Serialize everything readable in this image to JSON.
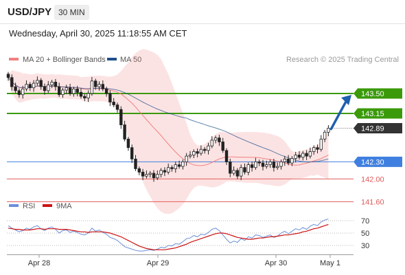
{
  "header": {
    "pair": "USD/JPY",
    "timeframe": "30 MIN",
    "timestamp": "Wednesday, April 30, 2025 11:18:55 AM CET",
    "source": "Research © 2025 Trading Central"
  },
  "colors": {
    "bollinger": "#f08080",
    "ma50": "#1f4e8c",
    "resistance": "#3a9a0a",
    "pivot": "#3f7fdf",
    "support": "#e05a5a",
    "price_label": "#333333",
    "arrow": "#1e5fb0",
    "rsi": "#6a8fd8",
    "rsi_ma": "#cc1111"
  },
  "chart_data": [
    {
      "type": "candlestick",
      "legend": [
        "MA 20 + Bollinger Bands",
        "MA 50"
      ],
      "x_ticks": [
        "Apr 28",
        "Apr 29",
        "Apr 30",
        "May 1"
      ],
      "levels": [
        {
          "value": 143.5,
          "label": "143.50",
          "kind": "resistance"
        },
        {
          "value": 143.15,
          "label": "143.15",
          "kind": "resistance"
        },
        {
          "value": 142.89,
          "label": "142.89",
          "kind": "last_price"
        },
        {
          "value": 142.3,
          "label": "142.30",
          "kind": "pivot"
        },
        {
          "value": 142.0,
          "label": "142.00",
          "kind": "support"
        },
        {
          "value": 141.6,
          "label": "141.60",
          "kind": "support"
        }
      ],
      "forecast_target": 143.5,
      "close": [
        143.78,
        143.62,
        143.55,
        143.48,
        143.58,
        143.66,
        143.6,
        143.68,
        143.73,
        143.62,
        143.55,
        143.65,
        143.7,
        143.62,
        143.48,
        143.56,
        143.6,
        143.5,
        143.58,
        143.52,
        143.45,
        143.42,
        143.5,
        143.72,
        143.62,
        143.66,
        143.58,
        143.5,
        143.35,
        143.3,
        143.22,
        142.95,
        142.7,
        142.55,
        142.35,
        142.18,
        142.12,
        142.05,
        142.08,
        142.1,
        142.02,
        142.08,
        142.15,
        142.12,
        142.2,
        142.18,
        142.25,
        142.22,
        142.3,
        142.4,
        142.42,
        142.48,
        142.45,
        142.52,
        142.5,
        142.58,
        142.68,
        142.72,
        142.65,
        142.5,
        142.3,
        142.1,
        142.15,
        142.05,
        142.2,
        142.12,
        142.25,
        142.2,
        142.3,
        142.28,
        142.22,
        142.25,
        142.3,
        142.2,
        142.22,
        142.3,
        142.35,
        142.28,
        142.36,
        142.42,
        142.38,
        142.45,
        142.4,
        142.48,
        142.55,
        142.52,
        142.7,
        142.82,
        142.89
      ]
    },
    {
      "type": "line",
      "legend": [
        "RSI",
        "9MA"
      ],
      "y_ticks": [
        70,
        50,
        30
      ],
      "ylim": [
        20,
        80
      ],
      "rsi": [
        62,
        58,
        55,
        52,
        54,
        58,
        56,
        60,
        62,
        57,
        54,
        58,
        60,
        56,
        50,
        54,
        55,
        51,
        53,
        51,
        48,
        47,
        50,
        58,
        53,
        55,
        51,
        48,
        43,
        41,
        38,
        33,
        28,
        26,
        24,
        22,
        21,
        21,
        22,
        23,
        22,
        24,
        27,
        26,
        30,
        29,
        33,
        32,
        36,
        41,
        42,
        46,
        44,
        48,
        47,
        51,
        56,
        58,
        54,
        47,
        40,
        34,
        37,
        35,
        41,
        38,
        44,
        42,
        47,
        46,
        43,
        45,
        47,
        43,
        45,
        50,
        53,
        49,
        53,
        57,
        55,
        59,
        56,
        61,
        64,
        62,
        68,
        71,
        73
      ],
      "ma9": [
        58,
        57,
        56,
        56,
        55,
        55,
        55,
        56,
        57,
        57,
        56,
        57,
        57,
        57,
        56,
        56,
        56,
        55,
        54,
        53,
        52,
        52,
        51,
        52,
        52,
        52,
        52,
        51,
        50,
        48,
        46,
        44,
        41,
        38,
        35,
        32,
        29,
        27,
        25,
        24,
        23,
        23,
        23,
        23,
        24,
        25,
        26,
        28,
        30,
        32,
        35,
        37,
        39,
        41,
        43,
        45,
        47,
        49,
        50,
        50,
        49,
        47,
        45,
        43,
        42,
        41,
        40,
        40,
        41,
        42,
        42,
        43,
        44,
        44,
        45,
        46,
        47,
        47,
        48,
        49,
        50,
        52,
        53,
        55,
        57,
        58,
        60,
        62,
        64
      ]
    }
  ]
}
